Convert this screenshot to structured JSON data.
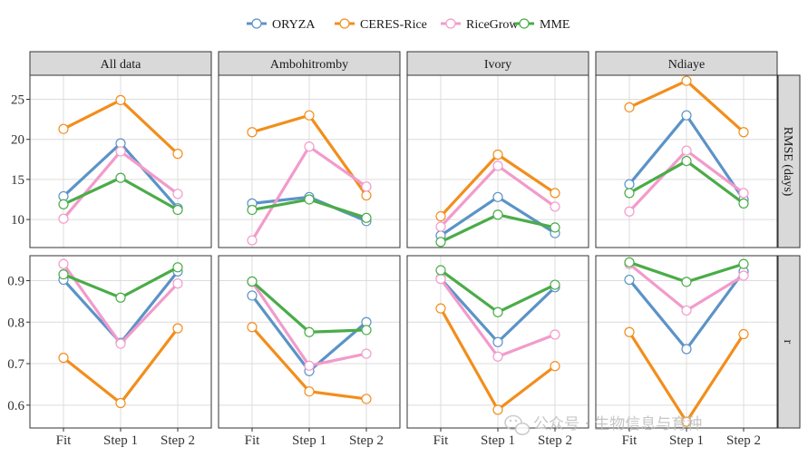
{
  "chart_data": {
    "type": "line",
    "layout": "facet-grid",
    "columns": [
      "All data",
      "Ambohitromby",
      "Ivory",
      "Ndiaye"
    ],
    "rows": [
      {
        "key": "rmse",
        "label": "RMSE (days)",
        "ylim": [
          6.5,
          28
        ],
        "ticks": [
          10,
          15,
          20,
          25
        ]
      },
      {
        "key": "r",
        "label": "r",
        "ylim": [
          0.545,
          0.96
        ],
        "ticks": [
          0.6,
          0.7,
          0.8,
          0.9
        ],
        "tick_labels": [
          "0.6",
          "0.7",
          "0.8",
          "0.9"
        ]
      }
    ],
    "categories": [
      "Fit",
      "Step 1",
      "Step 2"
    ],
    "series_meta": [
      {
        "name": "ORYZA",
        "color": "#5b93c7"
      },
      {
        "name": "CERES-Rice",
        "color": "#f28e1c"
      },
      {
        "name": "RiceGrow",
        "color": "#f29bcb"
      },
      {
        "name": "MME",
        "color": "#4aac48"
      }
    ],
    "draw_order": [
      "CERES-Rice",
      "ORYZA",
      "RiceGrow",
      "MME"
    ],
    "panels": [
      {
        "row": "rmse",
        "col": "All data",
        "series": {
          "ORYZA": [
            12.9,
            19.5,
            11.4
          ],
          "CERES-Rice": [
            21.3,
            24.9,
            18.2
          ],
          "RiceGrow": [
            10.1,
            18.5,
            13.2
          ],
          "MME": [
            11.9,
            15.2,
            11.2
          ]
        }
      },
      {
        "row": "rmse",
        "col": "Ambohitromby",
        "series": {
          "ORYZA": [
            12.0,
            12.8,
            9.8
          ],
          "CERES-Rice": [
            20.9,
            23.0,
            13.0
          ],
          "RiceGrow": [
            7.4,
            19.1,
            14.1
          ],
          "MME": [
            11.2,
            12.5,
            10.2
          ]
        }
      },
      {
        "row": "rmse",
        "col": "Ivory",
        "series": {
          "ORYZA": [
            8.0,
            12.8,
            8.3
          ],
          "CERES-Rice": [
            10.4,
            18.1,
            13.3
          ],
          "RiceGrow": [
            9.1,
            16.7,
            11.6
          ],
          "MME": [
            7.2,
            10.6,
            9.0
          ]
        }
      },
      {
        "row": "rmse",
        "col": "Ndiaye",
        "series": {
          "ORYZA": [
            14.4,
            23.0,
            12.5
          ],
          "CERES-Rice": [
            24.0,
            27.3,
            20.9
          ],
          "RiceGrow": [
            11.0,
            18.6,
            13.3
          ],
          "MME": [
            13.3,
            17.3,
            12.0
          ]
        }
      },
      {
        "row": "r",
        "col": "All data",
        "series": {
          "ORYZA": [
            0.902,
            0.75,
            0.922
          ],
          "CERES-Rice": [
            0.714,
            0.605,
            0.785
          ],
          "RiceGrow": [
            0.94,
            0.748,
            0.893
          ],
          "MME": [
            0.915,
            0.859,
            0.932
          ]
        }
      },
      {
        "row": "r",
        "col": "Ambohitromby",
        "series": {
          "ORYZA": [
            0.864,
            0.682,
            0.8
          ],
          "CERES-Rice": [
            0.788,
            0.633,
            0.615
          ],
          "RiceGrow": [
            0.897,
            0.695,
            0.724
          ],
          "MME": [
            0.898,
            0.776,
            0.781
          ]
        }
      },
      {
        "row": "r",
        "col": "Ivory",
        "series": {
          "ORYZA": [
            0.905,
            0.752,
            0.884
          ],
          "CERES-Rice": [
            0.833,
            0.589,
            0.694
          ],
          "RiceGrow": [
            0.904,
            0.717,
            0.77
          ],
          "MME": [
            0.925,
            0.824,
            0.89
          ]
        }
      },
      {
        "row": "r",
        "col": "Ndiaye",
        "series": {
          "ORYZA": [
            0.902,
            0.735,
            0.922
          ],
          "CERES-Rice": [
            0.776,
            0.56,
            0.771
          ],
          "RiceGrow": [
            0.94,
            0.828,
            0.912
          ],
          "MME": [
            0.944,
            0.897,
            0.94
          ]
        }
      }
    ]
  },
  "watermark": {
    "text": "公众号 · 生物信息与育种",
    "icon": "wechat-icon"
  }
}
